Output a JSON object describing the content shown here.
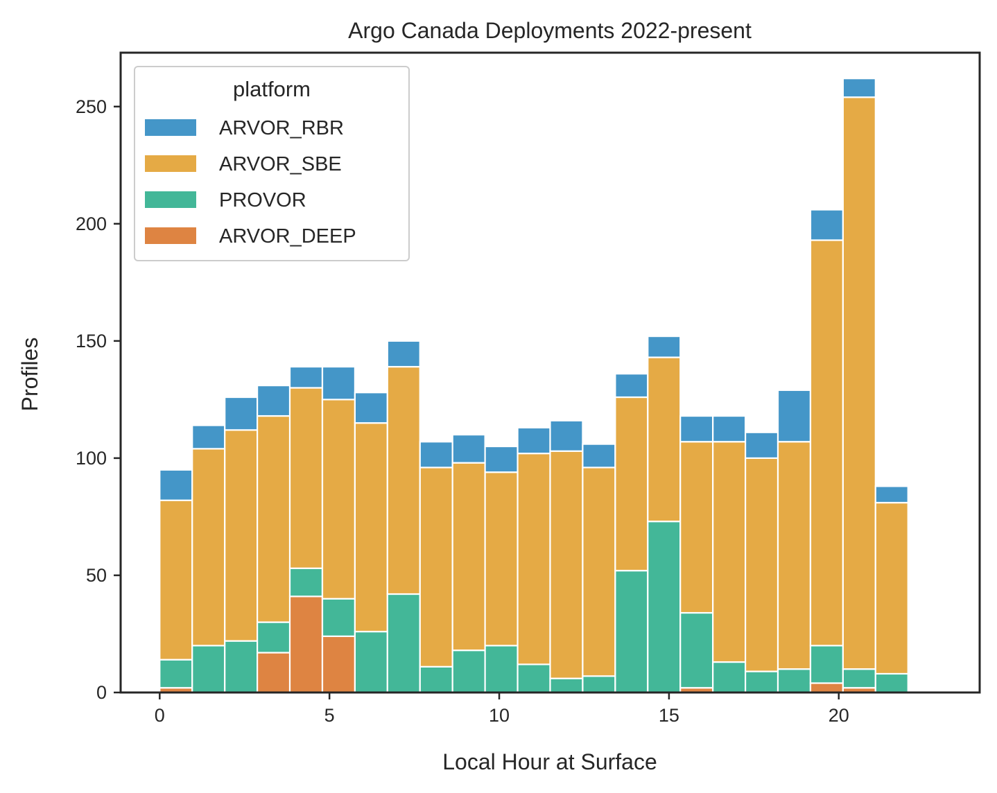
{
  "chart_data": {
    "type": "bar",
    "stacked": true,
    "title": "Argo Canada Deployments 2022-present",
    "xlabel": "Local Hour at Surface",
    "ylabel": "Profiles",
    "xlim": [
      -1.15,
      24.15
    ],
    "ylim": [
      0,
      273
    ],
    "bin_width": 0.9583,
    "x_ticks": [
      0,
      5,
      10,
      15,
      20
    ],
    "y_ticks": [
      0,
      50,
      100,
      150,
      200,
      250
    ],
    "x_tick_labels": [
      "0",
      "5",
      "10",
      "15",
      "20"
    ],
    "y_tick_labels": [
      "0",
      "50",
      "100",
      "150",
      "200",
      "250"
    ],
    "bin_starts": [
      0,
      0.958,
      1.917,
      2.875,
      3.833,
      4.792,
      5.75,
      6.708,
      7.667,
      8.625,
      9.583,
      10.542,
      11.5,
      12.458,
      13.417,
      14.375,
      15.333,
      16.292,
      17.25,
      18.208,
      19.167,
      20.125,
      21.083,
      22.042
    ],
    "legend": {
      "title": "platform",
      "position": "upper-left",
      "entries": [
        "ARVOR_RBR",
        "ARVOR_SBE",
        "PROVOR",
        "ARVOR_DEEP"
      ]
    },
    "series": [
      {
        "name": "ARVOR_DEEP",
        "color": "#de8442",
        "values": [
          2,
          0,
          0,
          17,
          41,
          24,
          0,
          0,
          0,
          0,
          0,
          0,
          0,
          0,
          0,
          0,
          2,
          0,
          0,
          0,
          4,
          2,
          0,
          0
        ]
      },
      {
        "name": "PROVOR",
        "color": "#43b798",
        "values": [
          12,
          20,
          22,
          13,
          12,
          16,
          26,
          42,
          11,
          18,
          20,
          12,
          6,
          7,
          52,
          73,
          32,
          13,
          9,
          10,
          16,
          8,
          8,
          0
        ]
      },
      {
        "name": "ARVOR_SBE",
        "color": "#e5aa45",
        "values": [
          68,
          84,
          90,
          88,
          77,
          85,
          89,
          97,
          85,
          80,
          74,
          90,
          97,
          89,
          74,
          70,
          73,
          94,
          91,
          97,
          173,
          244,
          73,
          0
        ]
      },
      {
        "name": "ARVOR_RBR",
        "color": "#4496c8",
        "values": [
          13,
          10,
          14,
          13,
          9,
          14,
          13,
          11,
          11,
          12,
          11,
          11,
          13,
          10,
          10,
          9,
          11,
          11,
          11,
          22,
          13,
          8,
          7,
          0
        ]
      }
    ]
  }
}
